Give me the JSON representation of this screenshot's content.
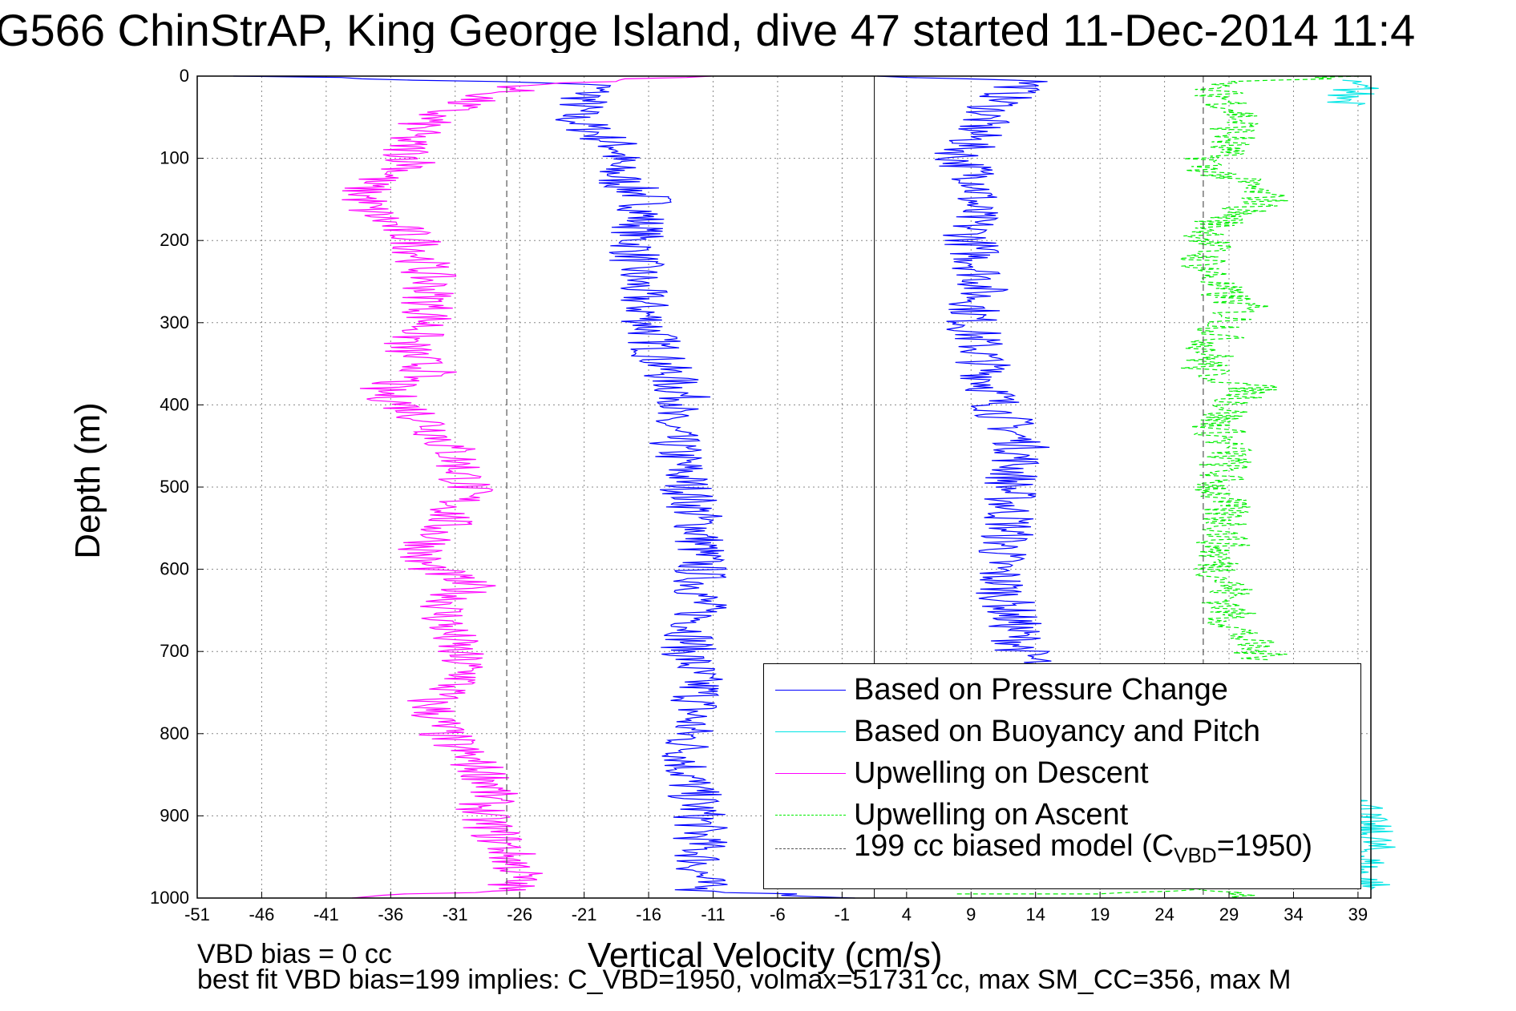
{
  "title": "G566 ChinStrAP, King George Island, dive 47 started 11-Dec-2014 11:4",
  "chart_data": {
    "type": "line",
    "xlabel": "Vertical Velocity (cm/s)",
    "ylabel": "Depth (m)",
    "xlim": [
      -51,
      40
    ],
    "ylim": [
      0,
      1000
    ],
    "y_reversed": true,
    "grid": true,
    "legend_position": "bottom-right",
    "xticks": [
      -51,
      -46,
      -41,
      -36,
      -31,
      -26,
      -21,
      -16,
      -11,
      -6,
      -1,
      4,
      9,
      14,
      19,
      24,
      29,
      34,
      39
    ],
    "yticks": [
      0,
      100,
      200,
      300,
      400,
      500,
      600,
      700,
      800,
      900,
      1000
    ],
    "zero_line_x": 1.5,
    "series": [
      {
        "name": "Based on Pressure Change",
        "color": "#0000ff",
        "style": "solid",
        "points": [
          [
            -46,
            0
          ],
          [
            -20,
            10
          ],
          [
            -21,
            30
          ],
          [
            -22,
            50
          ],
          [
            -20,
            70
          ],
          [
            -18,
            90
          ],
          [
            -19,
            110
          ],
          [
            -18,
            130
          ],
          [
            -16,
            150
          ],
          [
            -17,
            200
          ],
          [
            -17,
            250
          ],
          [
            -16,
            300
          ],
          [
            -15,
            350
          ],
          [
            -13,
            400
          ],
          [
            -15,
            410
          ],
          [
            -14,
            450
          ],
          [
            -13,
            500
          ],
          [
            -12,
            550
          ],
          [
            -12,
            600
          ],
          [
            -12,
            650
          ],
          [
            -13,
            700
          ],
          [
            -12,
            750
          ],
          [
            -13,
            800
          ],
          [
            -13,
            850
          ],
          [
            -12,
            900
          ],
          [
            -12,
            950
          ],
          [
            -12,
            990
          ],
          [
            0,
            1000
          ]
        ]
      },
      {
        "name": "Based on Pressure Change",
        "color": "#0000ff",
        "style": "solid",
        "points": [
          [
            1,
            0
          ],
          [
            14,
            5
          ],
          [
            12,
            20
          ],
          [
            10,
            50
          ],
          [
            9,
            80
          ],
          [
            8,
            100
          ],
          [
            10,
            130
          ],
          [
            9,
            160
          ],
          [
            9,
            200
          ],
          [
            10,
            250
          ],
          [
            9,
            300
          ],
          [
            10,
            350
          ],
          [
            11,
            400
          ],
          [
            13,
            450
          ],
          [
            12,
            500
          ],
          [
            12,
            550
          ],
          [
            11,
            600
          ],
          [
            12,
            650
          ],
          [
            13,
            700
          ],
          [
            14,
            715
          ]
        ]
      },
      {
        "name": "Based on Buoyancy and Pitch",
        "color": "#00e5e5",
        "style": "solid",
        "points": [
          [
            37,
            5
          ],
          [
            39,
            15
          ],
          [
            38,
            25
          ],
          [
            39,
            35
          ]
        ]
      },
      {
        "name": "Based on Buoyancy and Pitch",
        "color": "#00e5e5",
        "style": "solid",
        "points": [
          [
            40,
            880
          ],
          [
            39,
            900
          ],
          [
            40,
            930
          ],
          [
            39,
            970
          ],
          [
            40,
            990
          ]
        ]
      },
      {
        "name": "Upwelling on Descent",
        "color": "#ff00ff",
        "style": "solid",
        "points": [
          [
            -11,
            0
          ],
          [
            -25,
            10
          ],
          [
            -30,
            30
          ],
          [
            -33,
            50
          ],
          [
            -35,
            80
          ],
          [
            -34,
            110
          ],
          [
            -38,
            130
          ],
          [
            -38,
            160
          ],
          [
            -34,
            200
          ],
          [
            -33,
            250
          ],
          [
            -33,
            300
          ],
          [
            -35,
            330
          ],
          [
            -33,
            360
          ],
          [
            -37,
            380
          ],
          [
            -33,
            420
          ],
          [
            -31,
            460
          ],
          [
            -30,
            500
          ],
          [
            -32,
            550
          ],
          [
            -34,
            590
          ],
          [
            -30,
            620
          ],
          [
            -32,
            650
          ],
          [
            -31,
            700
          ],
          [
            -30,
            730
          ],
          [
            -33,
            760
          ],
          [
            -32,
            800
          ],
          [
            -30,
            830
          ],
          [
            -28,
            860
          ],
          [
            -29,
            900
          ],
          [
            -27,
            940
          ],
          [
            -26,
            970
          ],
          [
            -27,
            990
          ],
          [
            -39,
            1000
          ]
        ]
      },
      {
        "name": "Upwelling on Ascent",
        "color": "#00ee00",
        "style": "dashed",
        "points": [
          [
            40,
            0
          ],
          [
            27,
            10
          ],
          [
            29,
            30
          ],
          [
            30,
            50
          ],
          [
            29,
            80
          ],
          [
            27,
            110
          ],
          [
            30,
            130
          ],
          [
            32,
            150
          ],
          [
            28,
            180
          ],
          [
            27,
            220
          ],
          [
            28,
            260
          ],
          [
            30,
            280
          ],
          [
            28,
            320
          ],
          [
            27,
            360
          ],
          [
            31,
            380
          ],
          [
            28,
            420
          ],
          [
            29,
            460
          ],
          [
            28,
            500
          ],
          [
            29,
            550
          ],
          [
            28,
            590
          ],
          [
            29,
            620
          ],
          [
            29,
            660
          ],
          [
            31,
            700
          ],
          [
            32,
            710
          ]
        ]
      },
      {
        "name": "Upwelling on Ascent",
        "color": "#00ee00",
        "style": "dashed",
        "points": [
          [
            10,
            995
          ],
          [
            20,
            995
          ],
          [
            26,
            990
          ],
          [
            28,
            985
          ],
          [
            30,
            1000
          ]
        ]
      },
      {
        "name": "199 cc biased model (C_VBD=1950)",
        "color": "#555555",
        "style": "dashed",
        "points": [
          [
            -27,
            0
          ],
          [
            -27,
            1000
          ]
        ]
      },
      {
        "name": "199 cc biased model (C_VBD=1950)",
        "color": "#555555",
        "style": "dashed",
        "points": [
          [
            27,
            0
          ],
          [
            27,
            1000
          ]
        ]
      }
    ]
  },
  "legend": {
    "items": [
      {
        "label": "Based on Pressure Change",
        "color": "#0000ff",
        "dash": "none"
      },
      {
        "label": "Based on Buoyancy and Pitch",
        "color": "#00e5e5",
        "dash": "none"
      },
      {
        "label": "Upwelling on Descent",
        "color": "#ff00ff",
        "dash": "none"
      },
      {
        "label": "Upwelling on Ascent",
        "color": "#00ee00",
        "dash": "dashed"
      }
    ],
    "model_label": "199 cc biased model (C",
    "model_sub": "VBD",
    "model_suffix": "=1950)"
  },
  "notes": {
    "vbd_bias": "VBD bias = 0 cc",
    "best_fit": "best fit VBD bias=199 implies: C_VBD=1950, volmax=51731 cc, max SM_CC=356, max M"
  }
}
